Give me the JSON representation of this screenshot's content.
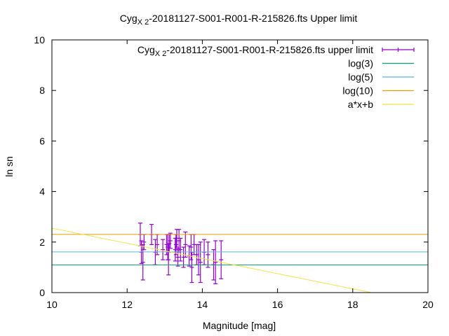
{
  "chart_data": {
    "type": "scatter",
    "title": {
      "prefix": "Cyg",
      "subscript": "X 2",
      "suffix": "-20181127-S001-R001-R-215826.fts Upper limit"
    },
    "xlabel": "Magnitude [mag]",
    "ylabel": "ln sn",
    "xlim": [
      10,
      20
    ],
    "ylim": [
      0,
      10
    ],
    "xticks": [
      10,
      12,
      14,
      16,
      18,
      20
    ],
    "yticks": [
      0,
      2,
      4,
      6,
      8,
      10
    ],
    "grid": false,
    "legend_position": "top-right",
    "series": [
      {
        "name": {
          "prefix": "Cyg",
          "subscript": "X 2",
          "suffix": "-20181127-S001-R001-R-215826.fts upper limit"
        },
        "kind": "errorbars",
        "color": "#9400d3",
        "points": [
          {
            "x": 12.35,
            "y": 2.3,
            "err": 0.45
          },
          {
            "x": 12.38,
            "y": 1.6,
            "err": 0.45
          },
          {
            "x": 12.42,
            "y": 1.2,
            "err": 0.7
          },
          {
            "x": 12.45,
            "y": 2.0,
            "err": 0.3
          },
          {
            "x": 12.65,
            "y": 2.3,
            "err": 0.4
          },
          {
            "x": 12.75,
            "y": 1.6,
            "err": 0.5
          },
          {
            "x": 12.8,
            "y": 1.9,
            "err": 0.4
          },
          {
            "x": 12.95,
            "y": 1.7,
            "err": 0.4
          },
          {
            "x": 13.05,
            "y": 1.9,
            "err": 0.4
          },
          {
            "x": 13.08,
            "y": 1.8,
            "err": 0.5
          },
          {
            "x": 13.1,
            "y": 1.3,
            "err": 0.6
          },
          {
            "x": 13.12,
            "y": 1.95,
            "err": 0.35
          },
          {
            "x": 13.15,
            "y": 2.05,
            "err": 0.3
          },
          {
            "x": 13.28,
            "y": 1.7,
            "err": 0.45
          },
          {
            "x": 13.3,
            "y": 1.9,
            "err": 0.4
          },
          {
            "x": 13.32,
            "y": 2.15,
            "err": 0.35
          },
          {
            "x": 13.35,
            "y": 1.4,
            "err": 0.35
          },
          {
            "x": 13.38,
            "y": 2.05,
            "err": 0.45
          },
          {
            "x": 13.42,
            "y": 1.7,
            "err": 0.45
          },
          {
            "x": 13.5,
            "y": 1.4,
            "err": 0.4
          },
          {
            "x": 13.55,
            "y": 1.9,
            "err": 0.5
          },
          {
            "x": 13.65,
            "y": 1.45,
            "err": 0.4
          },
          {
            "x": 13.7,
            "y": 1.8,
            "err": 0.5
          },
          {
            "x": 13.72,
            "y": 1.0,
            "err": 0.6
          },
          {
            "x": 13.78,
            "y": 1.9,
            "err": 0.4
          },
          {
            "x": 13.85,
            "y": 1.5,
            "err": 0.4
          },
          {
            "x": 13.9,
            "y": 1.3,
            "err": 0.6
          },
          {
            "x": 13.95,
            "y": 1.2,
            "err": 0.8
          },
          {
            "x": 14.05,
            "y": 1.6,
            "err": 0.5
          },
          {
            "x": 14.15,
            "y": 1.5,
            "err": 0.5
          },
          {
            "x": 14.3,
            "y": 1.1,
            "err": 0.6
          },
          {
            "x": 14.35,
            "y": 1.2,
            "err": 0.85
          },
          {
            "x": 14.5,
            "y": 1.3,
            "err": 0.75
          }
        ]
      },
      {
        "name": "log(3)",
        "kind": "hline",
        "y": 1.0986,
        "color": "#009e73"
      },
      {
        "name": "log(5)",
        "kind": "hline",
        "y": 1.6094,
        "color": "#56b4e9"
      },
      {
        "name": "log(10)",
        "kind": "hline",
        "y": 2.3026,
        "color": "#e69f00"
      },
      {
        "name": "a*x+b",
        "kind": "line",
        "x": [
          10,
          18.5
        ],
        "y": [
          2.55,
          0.0
        ],
        "color": "#f0e442"
      }
    ]
  }
}
